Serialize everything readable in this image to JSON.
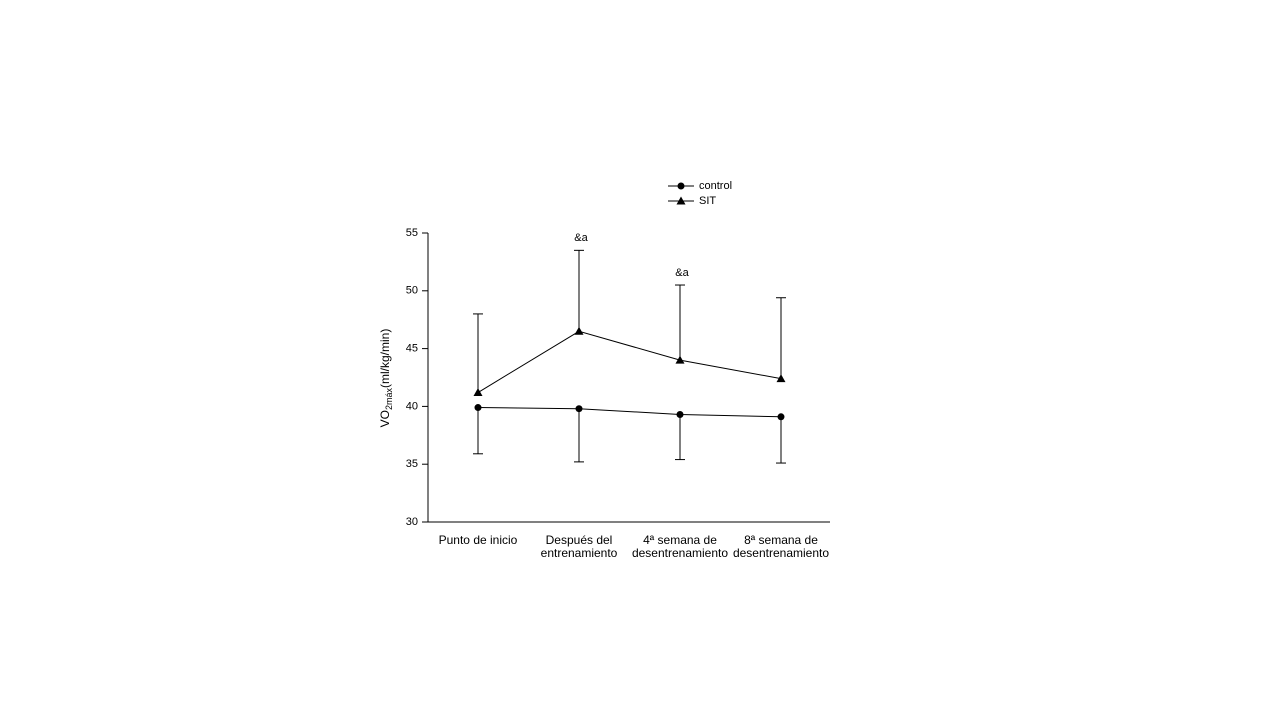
{
  "chart_data": {
    "type": "line",
    "ylabel": {
      "main": "VO",
      "sub": "2máx",
      "unit": "(ml/kg/min)"
    },
    "categories": [
      "Punto de inicio",
      "Después del entrenamiento",
      "4ª semana de desentrenamiento",
      "8ª semana de desentrenamiento"
    ],
    "series": [
      {
        "name": "control",
        "color": "#000000",
        "marker": "circle",
        "error_direction": "down",
        "values": [
          39.9,
          39.8,
          39.3,
          39.1
        ],
        "errors": [
          4.0,
          4.6,
          3.9,
          4.0
        ]
      },
      {
        "name": "SIT",
        "color": "#000000",
        "marker": "triangle",
        "error_direction": "up",
        "values": [
          41.2,
          46.5,
          44.0,
          42.4
        ],
        "errors": [
          6.8,
          7.0,
          6.5,
          7.0
        ]
      }
    ],
    "annotations": [
      {
        "text": "&a",
        "category": "Después del entrenamiento",
        "series": "SIT"
      },
      {
        "text": "&a",
        "category": "4ª semana de desentrenamiento",
        "series": "SIT"
      }
    ],
    "ylim": [
      30,
      55
    ],
    "yticks": [
      30,
      35,
      40,
      45,
      50,
      55
    ],
    "grid": false
  }
}
